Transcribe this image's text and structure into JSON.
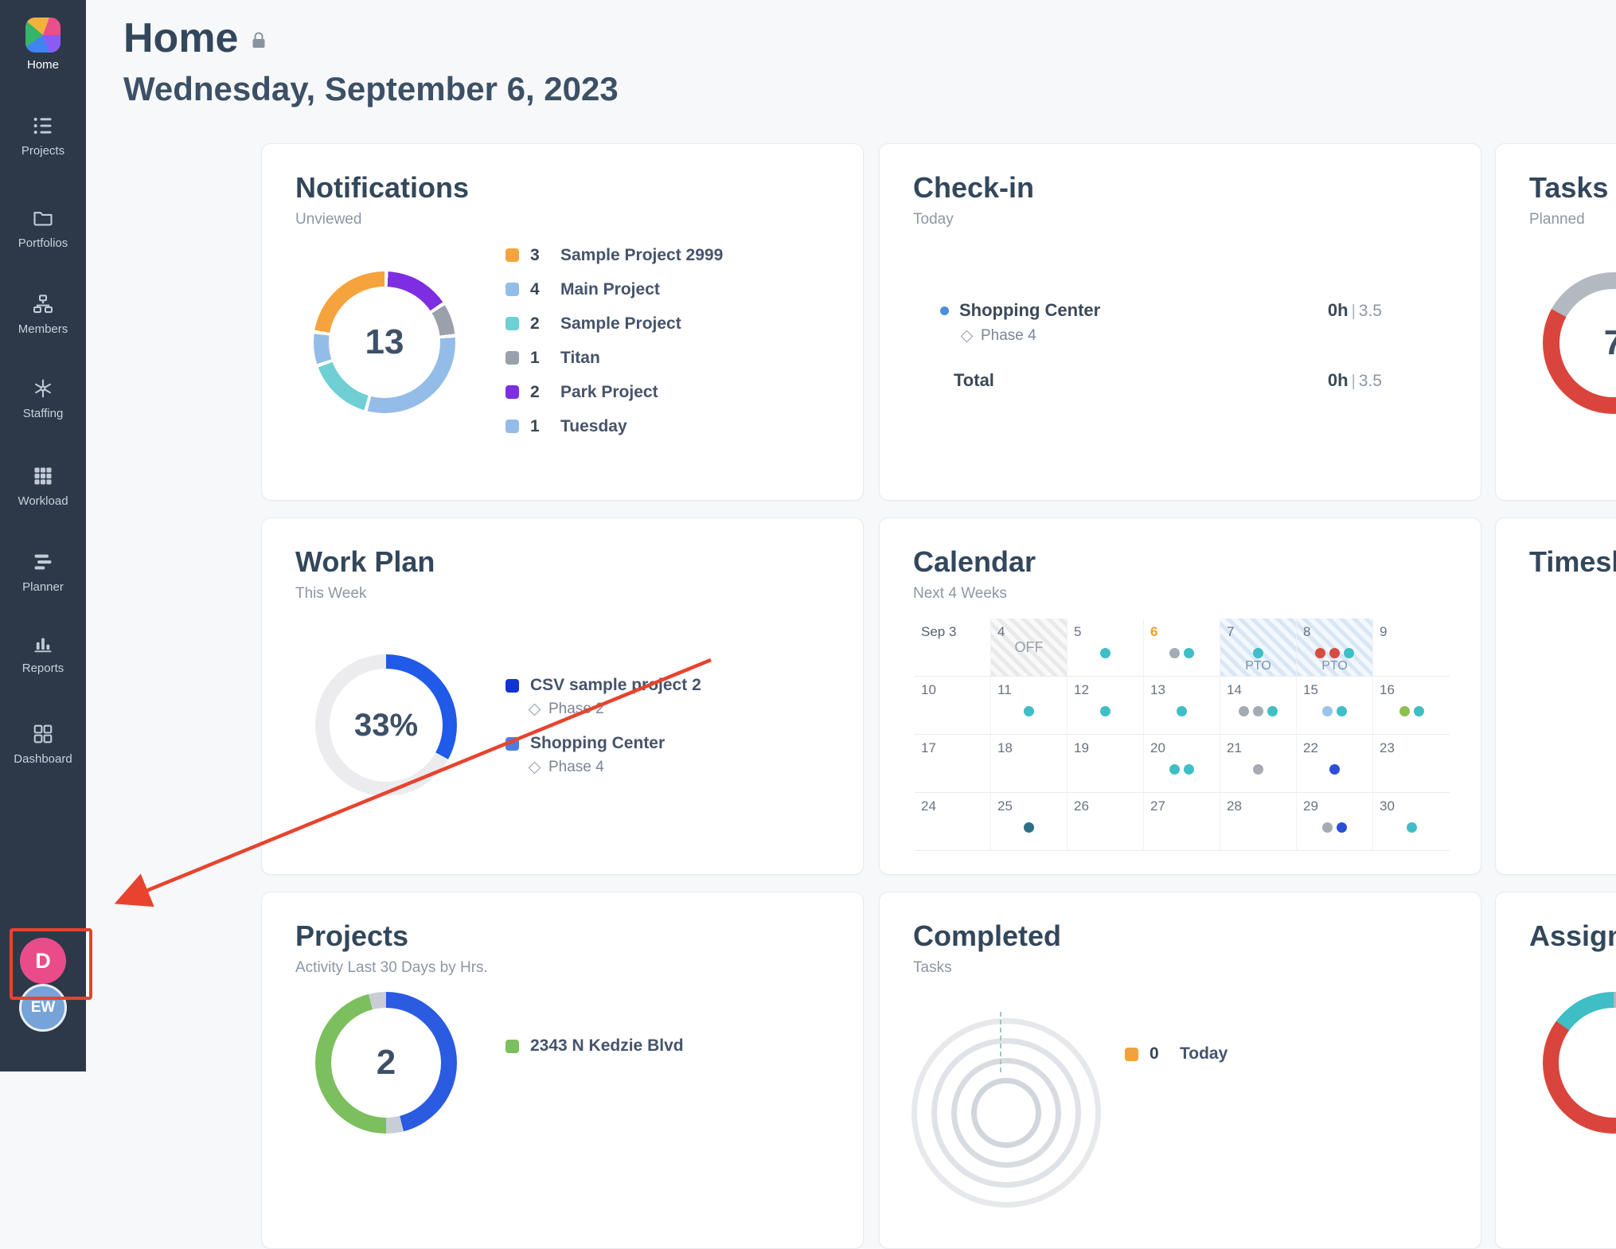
{
  "sidebar": {
    "items": [
      {
        "label": "Home"
      },
      {
        "label": "Projects"
      },
      {
        "label": "Portfolios"
      },
      {
        "label": "Members"
      },
      {
        "label": "Staffing"
      },
      {
        "label": "Workload"
      },
      {
        "label": "Planner"
      },
      {
        "label": "Reports"
      },
      {
        "label": "Dashboard"
      }
    ],
    "avatars": [
      {
        "initials": "D",
        "color": "#ea4c89"
      },
      {
        "initials": "EW",
        "color": "#76a3d8"
      }
    ]
  },
  "header": {
    "title": "Home",
    "date": "Wednesday, September 6, 2023"
  },
  "cards": {
    "notifications": {
      "title": "Notifications",
      "subtitle": "Unviewed",
      "donut": {
        "label": "13",
        "gap_deg": 3,
        "segments": [
          {
            "color": "#7e2ee0",
            "value": 2
          },
          {
            "color": "#9aa1ab",
            "value": 1
          },
          {
            "color": "#94bce8",
            "value": 4
          },
          {
            "color": "#6fcfd4",
            "value": 2
          },
          {
            "color": "#94bce8",
            "value": 1
          },
          {
            "color": "#f5a33c",
            "value": 3
          }
        ]
      },
      "legend": [
        {
          "count": "3",
          "label": "Sample Project 2999",
          "color": "#f5a33c"
        },
        {
          "count": "4",
          "label": "Main Project",
          "color": "#94bce8"
        },
        {
          "count": "2",
          "label": "Sample Project",
          "color": "#6fcfd4"
        },
        {
          "count": "1",
          "label": "Titan",
          "color": "#9aa1ab"
        },
        {
          "count": "2",
          "label": "Park Project",
          "color": "#7e2ee0"
        },
        {
          "count": "1",
          "label": "Tuesday",
          "color": "#94bce8"
        }
      ]
    },
    "checkin": {
      "title": "Check-in",
      "subtitle": "Today",
      "sep": "|",
      "project": {
        "name": "Shopping Center",
        "dot_color": "#4a90d9",
        "phase": "Phase 4",
        "logged": "0h",
        "planned": "3.5"
      },
      "total": {
        "label": "Total",
        "logged": "0h",
        "planned": "3.5"
      }
    },
    "tasks": {
      "title": "Tasks",
      "subtitle": "Planned",
      "donut": {
        "label": "7",
        "segments": [
          {
            "color": "#b3b9c1",
            "value": 42
          },
          {
            "color": "#d9453c",
            "value": 41
          },
          {
            "color": "#b3b9c1",
            "value": 17
          }
        ]
      }
    },
    "workplan": {
      "title": "Work Plan",
      "subtitle": "This Week",
      "donut": {
        "label": "33%",
        "segments": [
          {
            "color": "#1f5ae8",
            "value": 33
          },
          {
            "color": "#ececee",
            "value": 67
          }
        ]
      },
      "legend": [
        {
          "color": "#1433d6",
          "label": "CSV sample project 2",
          "phase": "Phase 2"
        },
        {
          "color": "#4d7de0",
          "label": "Shopping Center",
          "phase": "Phase 4"
        }
      ]
    },
    "calendar": {
      "title": "Calendar",
      "subtitle": "Next 4 Weeks",
      "days": [
        {
          "label": "Sep 3",
          "first": true
        },
        {
          "label": "4",
          "type": "off",
          "tag": "OFF"
        },
        {
          "label": "5",
          "dots": [
            "#3fbec6"
          ]
        },
        {
          "label": "6",
          "today": true,
          "dots": [
            "#a4abb3",
            "#3fbec6"
          ]
        },
        {
          "label": "7",
          "type": "pto",
          "tag": "PTO",
          "dots": [
            "#3fbec6"
          ]
        },
        {
          "label": "8",
          "type": "pto",
          "tag": "PTO",
          "dots": [
            "#d84b40",
            "#d84b40",
            "#3fbec6"
          ]
        },
        {
          "label": "9"
        },
        {
          "label": "10"
        },
        {
          "label": "11",
          "dots": [
            "#3fbec6"
          ]
        },
        {
          "label": "12",
          "dots": [
            "#3fbec6"
          ]
        },
        {
          "label": "13",
          "dots": [
            "#3fbec6"
          ]
        },
        {
          "label": "14",
          "dots": [
            "#a4abb3",
            "#a4abb3",
            "#3fbec6"
          ]
        },
        {
          "label": "15",
          "dots": [
            "#9cc3ea",
            "#3fbec6"
          ]
        },
        {
          "label": "16",
          "dots": [
            "#8ec04e",
            "#3fbec6"
          ]
        },
        {
          "label": "17"
        },
        {
          "label": "18"
        },
        {
          "label": "19"
        },
        {
          "label": "20",
          "dots": [
            "#3fbec6",
            "#3fbec6"
          ]
        },
        {
          "label": "21",
          "dots": [
            "#a4abb3"
          ]
        },
        {
          "label": "22",
          "dots": [
            "#2b4ed8"
          ]
        },
        {
          "label": "23"
        },
        {
          "label": "24"
        },
        {
          "label": "25",
          "dots": [
            "#2d7086"
          ]
        },
        {
          "label": "26"
        },
        {
          "label": "27"
        },
        {
          "label": "28"
        },
        {
          "label": "29",
          "dots": [
            "#a4abb3",
            "#2b4ed8"
          ]
        },
        {
          "label": "30",
          "dots": [
            "#3fbec6"
          ]
        }
      ]
    },
    "timesheet": {
      "title": "Timesheet"
    },
    "projects": {
      "title": "Projects",
      "subtitle": "Activity Last 30 Days by Hrs.",
      "donut": {
        "label": "2",
        "segments": [
          {
            "color": "#2a5be0",
            "value": 46
          },
          {
            "color": "#c9ced6",
            "value": 4
          },
          {
            "color": "#7cbf5e",
            "value": 46
          },
          {
            "color": "#c9ced6",
            "value": 4
          }
        ]
      },
      "legend": [
        {
          "color": "#7cbf5e",
          "label": "2343 N Kedzie Blvd"
        }
      ]
    },
    "completed": {
      "title": "Completed",
      "subtitle": "Tasks",
      "legend": [
        {
          "count": "0",
          "label": "Today",
          "color": "#f0a23c"
        }
      ]
    },
    "assignments": {
      "title": "Assignments",
      "donut": {
        "label": "",
        "segments": [
          {
            "color": "#b3b9c1",
            "value": 30
          },
          {
            "color": "#d9453c",
            "value": 55
          },
          {
            "color": "#3fbec6",
            "value": 15
          }
        ]
      }
    }
  }
}
